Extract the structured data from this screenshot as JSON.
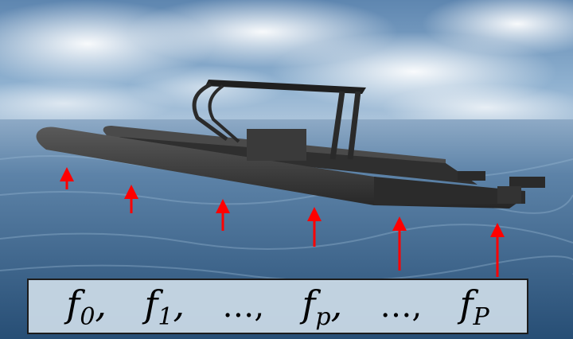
{
  "caption": {
    "f0": {
      "base": "f",
      "sub": "0"
    },
    "f1": {
      "base": "f",
      "sub": "1"
    },
    "fp": {
      "base": "f",
      "sub": "p"
    },
    "fP": {
      "base": "f",
      "sub": "P"
    },
    "comma": ",",
    "ellipsis": "…"
  },
  "colors": {
    "arrow": "#ff0000",
    "sky": "#7aa0c6",
    "water": "#4a6f92",
    "hull": "#3d3d3d"
  },
  "icons": {
    "arrows": "up-arrow-icon"
  }
}
